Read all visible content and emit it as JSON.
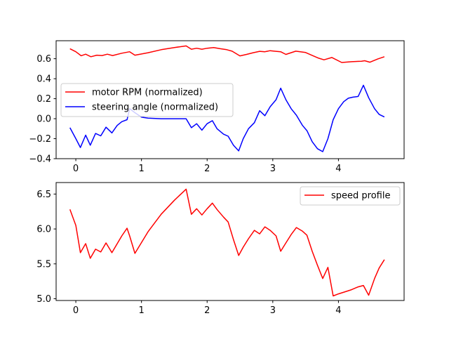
{
  "chart_data": [
    {
      "type": "line",
      "title": "",
      "xlabel": "",
      "ylabel": "",
      "xlim": [
        -0.3,
        5.0
      ],
      "ylim": [
        -0.4,
        0.78
      ],
      "xticks": [
        0,
        1,
        2,
        3,
        4
      ],
      "yticks": [
        -0.4,
        -0.2,
        0.0,
        0.2,
        0.4,
        0.6
      ],
      "ytick_labels": [
        "−0.4",
        "−0.2",
        "0.0",
        "0.2",
        "0.4",
        "0.6"
      ],
      "legend": "center-left",
      "grid": false,
      "series": [
        {
          "name": "motor RPM (normalized)",
          "color": "#ff0000",
          "x": [
            -0.09,
            0.0,
            0.08,
            0.15,
            0.23,
            0.32,
            0.4,
            0.48,
            0.56,
            0.7,
            0.82,
            0.9,
            1.1,
            1.3,
            1.5,
            1.68,
            1.76,
            1.84,
            1.92,
            2.0,
            2.1,
            2.2,
            2.3,
            2.38,
            2.5,
            2.6,
            2.7,
            2.8,
            2.88,
            2.96,
            3.05,
            3.12,
            3.2,
            3.35,
            3.5,
            3.6,
            3.7,
            3.78,
            3.9,
            4.05,
            4.2,
            4.35,
            4.4,
            4.48,
            4.6,
            4.7
          ],
          "y": [
            0.7,
            0.67,
            0.63,
            0.645,
            0.62,
            0.635,
            0.632,
            0.645,
            0.632,
            0.655,
            0.67,
            0.635,
            0.66,
            0.69,
            0.712,
            0.728,
            0.695,
            0.705,
            0.695,
            0.705,
            0.712,
            0.7,
            0.69,
            0.675,
            0.628,
            0.643,
            0.66,
            0.674,
            0.67,
            0.68,
            0.674,
            0.67,
            0.643,
            0.675,
            0.662,
            0.633,
            0.605,
            0.589,
            0.612,
            0.562,
            0.57,
            0.575,
            0.58,
            0.565,
            0.598,
            0.62
          ]
        },
        {
          "name": "steering angle (normalized)",
          "color": "#0000ff",
          "x": [
            -0.09,
            0.0,
            0.07,
            0.15,
            0.22,
            0.3,
            0.38,
            0.46,
            0.55,
            0.63,
            0.7,
            0.78,
            0.82,
            0.9,
            1.0,
            1.1,
            1.3,
            1.5,
            1.68,
            1.76,
            1.84,
            1.92,
            2.0,
            2.08,
            2.15,
            2.25,
            2.32,
            2.4,
            2.48,
            2.55,
            2.63,
            2.72,
            2.8,
            2.88,
            2.96,
            3.05,
            3.12,
            3.2,
            3.28,
            3.36,
            3.45,
            3.52,
            3.6,
            3.68,
            3.76,
            3.84,
            3.92,
            4.0,
            4.08,
            4.15,
            4.22,
            4.3,
            4.38,
            4.46,
            4.55,
            4.62,
            4.7
          ],
          "y": [
            -0.09,
            -0.2,
            -0.288,
            -0.165,
            -0.265,
            -0.148,
            -0.172,
            -0.085,
            -0.142,
            -0.068,
            -0.03,
            -0.01,
            0.1,
            0.06,
            0.015,
            0.005,
            0.0,
            0.0,
            0.0,
            -0.09,
            -0.05,
            -0.115,
            -0.05,
            -0.02,
            -0.1,
            -0.155,
            -0.175,
            -0.265,
            -0.322,
            -0.2,
            -0.1,
            -0.04,
            0.08,
            0.03,
            0.12,
            0.19,
            0.305,
            0.19,
            0.1,
            0.035,
            -0.065,
            -0.12,
            -0.23,
            -0.3,
            -0.33,
            -0.2,
            -0.01,
            0.1,
            0.17,
            0.205,
            0.215,
            0.222,
            0.335,
            0.21,
            0.1,
            0.043,
            0.017
          ]
        }
      ]
    },
    {
      "type": "line",
      "title": "",
      "xlabel": "",
      "ylabel": "",
      "xlim": [
        -0.3,
        5.0
      ],
      "ylim": [
        4.975,
        6.665
      ],
      "xticks": [
        0,
        1,
        2,
        3,
        4
      ],
      "yticks": [
        5.0,
        5.5,
        6.0,
        6.5
      ],
      "ytick_labels": [
        "5.0",
        "5.5",
        "6.0",
        "6.5"
      ],
      "legend": "top-right",
      "grid": false,
      "series": [
        {
          "name": "speed profile",
          "color": "#ff0000",
          "x": [
            -0.09,
            0.0,
            0.07,
            0.15,
            0.22,
            0.3,
            0.38,
            0.46,
            0.55,
            0.7,
            0.78,
            0.82,
            0.9,
            1.1,
            1.3,
            1.5,
            1.68,
            1.76,
            1.84,
            1.92,
            2.0,
            2.08,
            2.15,
            2.25,
            2.32,
            2.4,
            2.48,
            2.55,
            2.63,
            2.72,
            2.8,
            2.88,
            2.96,
            3.05,
            3.12,
            3.2,
            3.28,
            3.36,
            3.45,
            3.52,
            3.6,
            3.68,
            3.76,
            3.84,
            3.92,
            4.0,
            4.1,
            4.2,
            4.3,
            4.38,
            4.46,
            4.55,
            4.62,
            4.7
          ],
          "y": [
            6.28,
            6.05,
            5.66,
            5.79,
            5.58,
            5.71,
            5.67,
            5.8,
            5.66,
            5.9,
            6.01,
            5.9,
            5.65,
            5.96,
            6.21,
            6.41,
            6.57,
            6.21,
            6.29,
            6.2,
            6.29,
            6.37,
            6.28,
            6.17,
            6.1,
            5.85,
            5.62,
            5.74,
            5.86,
            5.98,
            5.93,
            6.03,
            5.98,
            5.9,
            5.68,
            5.8,
            5.92,
            6.02,
            5.97,
            5.91,
            5.68,
            5.48,
            5.29,
            5.45,
            5.04,
            5.07,
            5.1,
            5.13,
            5.17,
            5.19,
            5.05,
            5.29,
            5.44,
            5.56
          ]
        }
      ]
    }
  ]
}
